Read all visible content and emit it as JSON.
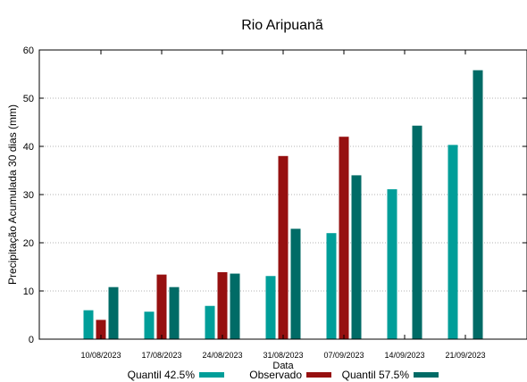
{
  "chart_data": {
    "type": "bar",
    "title": "Rio Aripuanã",
    "xlabel": "Data",
    "ylabel": "Precipitação Acumulada 30 dias (mm)",
    "ylim": [
      0,
      60
    ],
    "yticks": [
      0,
      10,
      20,
      30,
      40,
      50,
      60
    ],
    "grid": "y",
    "legend_position": "bottom",
    "categories": [
      "10/08/2023",
      "17/08/2023",
      "24/08/2023",
      "31/08/2023",
      "07/09/2023",
      "14/09/2023",
      "21/09/2023"
    ],
    "series": [
      {
        "name": "Quantil 42.5%",
        "color": "#009e99",
        "values": [
          6.0,
          5.7,
          6.9,
          13.1,
          22.0,
          31.1,
          40.3
        ]
      },
      {
        "name": "Observado",
        "color": "#961010",
        "values": [
          4.0,
          13.4,
          13.9,
          38.0,
          42.0,
          null,
          null
        ]
      },
      {
        "name": "Quantil 57.5%",
        "color": "#006b66",
        "values": [
          10.8,
          10.8,
          13.6,
          22.9,
          34.0,
          44.3,
          55.8
        ]
      }
    ]
  }
}
